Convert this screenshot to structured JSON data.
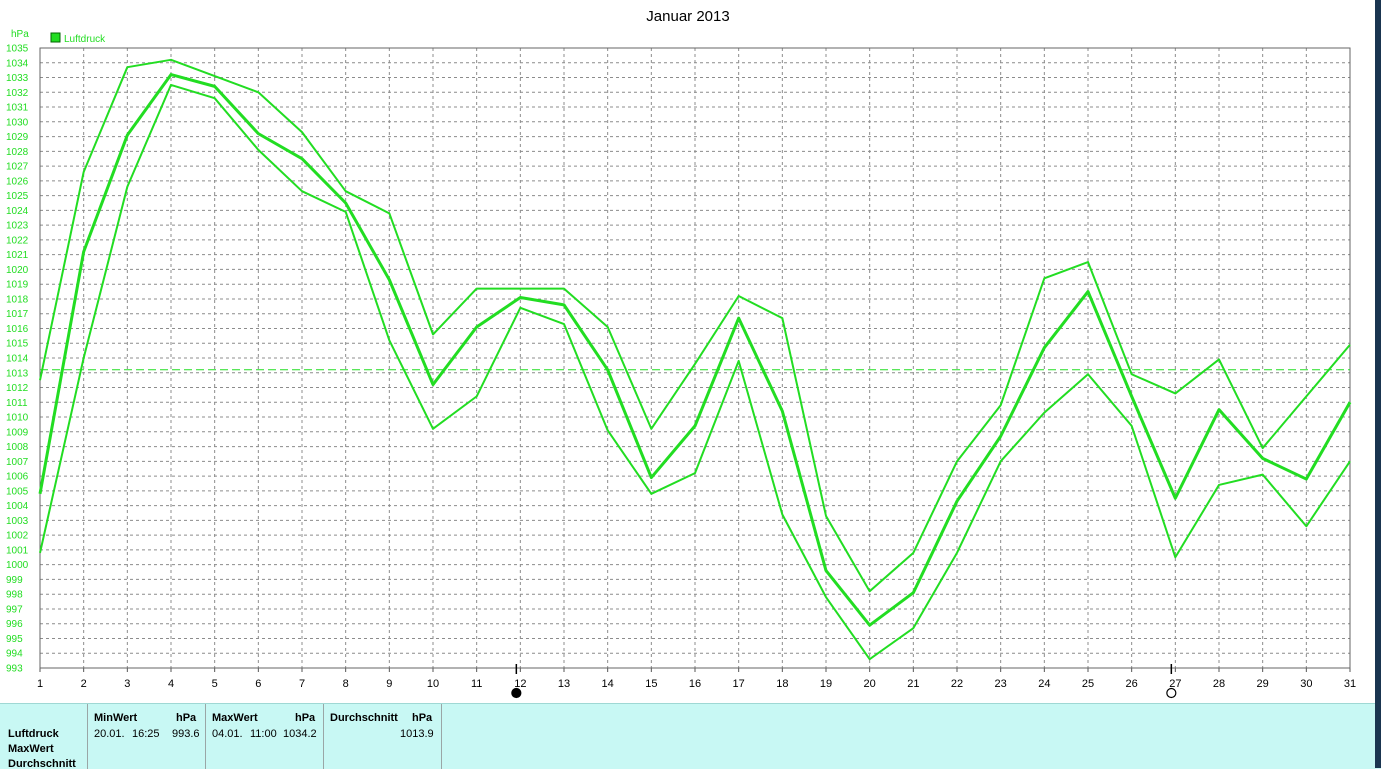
{
  "chart_data": {
    "type": "line",
    "title": "Januar 2013",
    "ylabel": "hPa",
    "legend": {
      "label": "Luftdruck",
      "color": "#22dd22",
      "placement": "top-left"
    },
    "ylim": [
      993,
      1035
    ],
    "yticks": [
      993,
      994,
      995,
      996,
      997,
      998,
      999,
      1000,
      1001,
      1002,
      1003,
      1004,
      1005,
      1006,
      1007,
      1008,
      1009,
      1010,
      1011,
      1012,
      1013,
      1014,
      1015,
      1016,
      1017,
      1018,
      1019,
      1020,
      1021,
      1022,
      1023,
      1024,
      1025,
      1026,
      1027,
      1028,
      1029,
      1030,
      1031,
      1032,
      1033,
      1034,
      1035
    ],
    "x": [
      1,
      2,
      3,
      4,
      5,
      6,
      7,
      8,
      9,
      10,
      11,
      12,
      13,
      14,
      15,
      16,
      17,
      18,
      19,
      20,
      21,
      22,
      23,
      24,
      25,
      26,
      27,
      28,
      29,
      30,
      31
    ],
    "grid": true,
    "line_color": "#22dd22",
    "series": [
      {
        "role": "max",
        "values": [
          1012.5,
          1026.6,
          1033.7,
          1034.2,
          1033.1,
          1032.0,
          1029.3,
          1025.3,
          1023.8,
          1015.6,
          1018.7,
          1018.7,
          1018.7,
          1016.1,
          1009.2,
          1013.6,
          1018.2,
          1016.7,
          1003.3,
          998.2,
          1000.8,
          1007.0,
          1010.8,
          1019.4,
          1020.5,
          1012.9,
          1011.6,
          1013.9,
          1007.9,
          1011.4,
          1014.9
        ]
      },
      {
        "role": "mean",
        "values": [
          1004.8,
          1021.2,
          1029.1,
          1033.2,
          1032.4,
          1029.2,
          1027.5,
          1024.5,
          1019.3,
          1012.2,
          1016.1,
          1018.1,
          1017.6,
          1013.2,
          1005.9,
          1009.4,
          1016.7,
          1010.4,
          999.6,
          995.9,
          998.1,
          1004.3,
          1008.7,
          1014.7,
          1018.5,
          1011.4,
          1004.5,
          1010.5,
          1007.2,
          1005.8,
          1011.0
        ]
      },
      {
        "role": "min",
        "values": [
          1000.8,
          1014.0,
          1025.6,
          1032.5,
          1031.6,
          1028.1,
          1025.3,
          1023.9,
          1015.2,
          1009.2,
          1011.4,
          1017.4,
          1016.3,
          1009.1,
          1004.8,
          1006.2,
          1013.8,
          1003.4,
          997.8,
          993.6,
          995.7,
          1000.8,
          1007.0,
          1010.3,
          1012.9,
          1009.4,
          1000.5,
          1005.4,
          1006.1,
          1002.6,
          1007.0
        ]
      }
    ],
    "reference_line": 1013.2,
    "moon_markers": [
      {
        "day": 12,
        "phase": "new"
      },
      {
        "day": 27,
        "phase": "full"
      }
    ]
  },
  "stats": {
    "row_labels": [
      "Luftdruck",
      "MaxWert",
      "Durchschnitt"
    ],
    "min": {
      "header": "MinWert",
      "unit": "hPa",
      "date": "20.01.",
      "time": "16:25",
      "value": "993.6"
    },
    "max": {
      "header": "MaxWert",
      "unit": "hPa",
      "date": "04.01.",
      "time": "11:00",
      "value": "1034.2"
    },
    "avg": {
      "header": "Durchschnitt",
      "unit": "hPa",
      "value": "1013.9"
    }
  }
}
